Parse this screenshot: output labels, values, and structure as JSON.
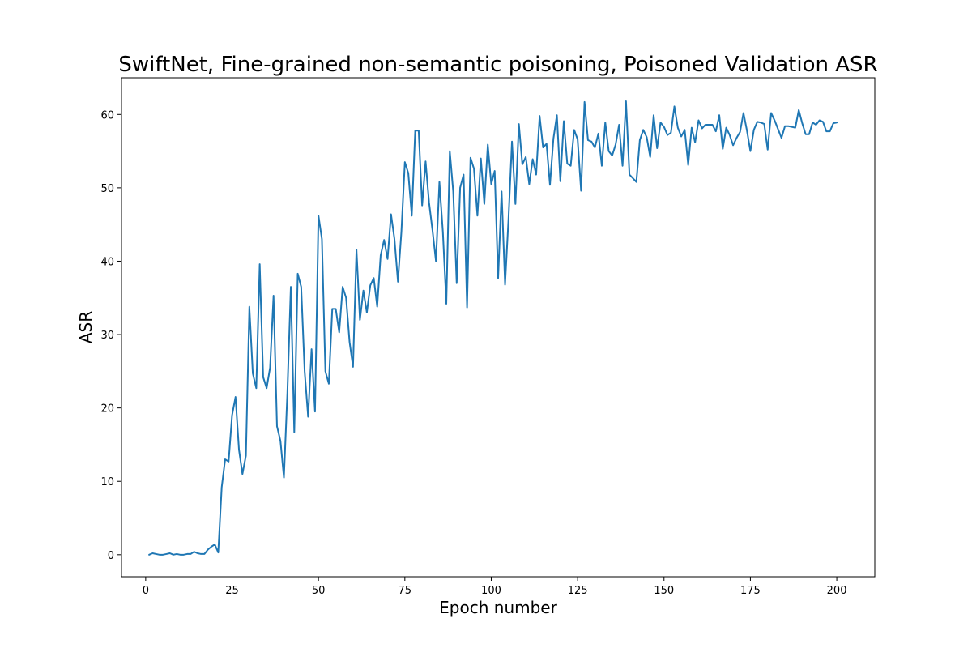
{
  "chart_data": {
    "type": "line",
    "title": "SwiftNet, Fine-grained non-semantic poisoning, Poisoned Validation ASR",
    "xlabel": "Epoch number",
    "ylabel": "ASR",
    "xlim": [
      -7,
      211
    ],
    "ylim": [
      -3,
      65
    ],
    "xticks": [
      0,
      25,
      50,
      75,
      100,
      125,
      150,
      175,
      200
    ],
    "yticks": [
      0,
      10,
      20,
      30,
      40,
      50,
      60
    ],
    "grid": false,
    "series": [
      {
        "color": "#1f77b4",
        "x": [
          1,
          2,
          3,
          4,
          5,
          6,
          7,
          8,
          9,
          10,
          11,
          12,
          13,
          14,
          15,
          16,
          17,
          18,
          19,
          20,
          21,
          22,
          23,
          24,
          25,
          26,
          27,
          28,
          29,
          30,
          31,
          32,
          33,
          34,
          35,
          36,
          37,
          38,
          39,
          40,
          41,
          42,
          43,
          44,
          45,
          46,
          47,
          48,
          49,
          50,
          51,
          52,
          53,
          54,
          55,
          56,
          57,
          58,
          59,
          60,
          61,
          62,
          63,
          64,
          65,
          66,
          67,
          68,
          69,
          70,
          71,
          72,
          73,
          74,
          75,
          76,
          77,
          78,
          79,
          80,
          81,
          82,
          83,
          84,
          85,
          86,
          87,
          88,
          89,
          90,
          91,
          92,
          93,
          94,
          95,
          96,
          97,
          98,
          99,
          100,
          101,
          102,
          103,
          104,
          105,
          106,
          107,
          108,
          109,
          110,
          111,
          112,
          113,
          114,
          115,
          116,
          117,
          118,
          119,
          120,
          121,
          122,
          123,
          124,
          125,
          126,
          127,
          128,
          129,
          130,
          131,
          132,
          133,
          134,
          135,
          136,
          137,
          138,
          139,
          140,
          141,
          142,
          143,
          144,
          145,
          146,
          147,
          148,
          149,
          150,
          151,
          152,
          153,
          154,
          155,
          156,
          157,
          158,
          159,
          160,
          161,
          162,
          163,
          164,
          165,
          166,
          167,
          168,
          169,
          170,
          171,
          172,
          173,
          174,
          175,
          176,
          177,
          178,
          179,
          180,
          181,
          182,
          183,
          184,
          185,
          186,
          187,
          188,
          189,
          190,
          191,
          192,
          193,
          194,
          195,
          196,
          197,
          198,
          199,
          200
        ],
        "values": [
          0.0,
          0.2,
          0.1,
          0.0,
          0.0,
          0.1,
          0.2,
          0.0,
          0.1,
          0.0,
          0.0,
          0.1,
          0.1,
          0.4,
          0.2,
          0.1,
          0.1,
          0.7,
          1.1,
          1.4,
          0.3,
          9.2,
          13.0,
          12.7,
          19.0,
          21.5,
          14.3,
          11.0,
          13.5,
          33.8,
          24.7,
          22.7,
          39.6,
          24.2,
          22.7,
          25.5,
          35.3,
          17.5,
          15.5,
          10.5,
          22.0,
          36.5,
          16.7,
          38.3,
          36.5,
          25.0,
          18.8,
          28.0,
          19.5,
          46.2,
          43.0,
          25.0,
          23.3,
          33.5,
          33.5,
          30.3,
          36.5,
          35.0,
          29.0,
          25.6,
          41.6,
          32.0,
          36.0,
          33.0,
          36.7,
          37.7,
          33.8,
          40.8,
          42.9,
          40.3,
          46.4,
          43.0,
          37.2,
          44.0,
          53.5,
          52.0,
          46.2,
          57.8,
          57.8,
          47.6,
          53.6,
          48.0,
          44.2,
          40.0,
          50.8,
          44.0,
          34.2,
          55.0,
          49.5,
          37.0,
          50.0,
          51.8,
          33.7,
          54.1,
          52.6,
          46.2,
          54.0,
          47.8,
          55.9,
          50.5,
          52.3,
          37.7,
          49.5,
          36.8,
          45.8,
          56.3,
          47.8,
          58.7,
          53.2,
          54.2,
          50.5,
          53.9,
          51.8,
          59.8,
          55.5,
          56.0,
          50.4,
          56.7,
          59.9,
          50.9,
          59.1,
          53.3,
          53.0,
          57.9,
          56.6,
          49.6,
          61.7,
          56.5,
          56.3,
          55.5,
          57.4,
          53.0,
          58.9,
          55.0,
          54.4,
          55.9,
          58.6,
          53.0,
          61.8,
          51.8,
          51.3,
          50.8,
          56.5,
          57.9,
          56.9,
          54.2,
          59.9,
          55.4,
          58.9,
          58.3,
          57.2,
          57.5,
          61.1,
          58.2,
          57.0,
          57.9,
          53.1,
          58.2,
          56.2,
          59.2,
          58.1,
          58.6,
          58.6,
          58.6,
          57.7,
          59.9,
          55.3,
          58.2,
          57.2,
          55.8,
          56.8,
          57.6,
          60.2,
          57.8,
          55.0,
          57.9,
          59.0,
          58.9,
          58.7,
          55.2,
          60.2,
          59.2,
          58.0,
          56.8,
          58.4,
          58.4,
          58.3,
          58.2,
          60.6,
          58.8,
          57.3,
          57.3,
          58.9,
          58.6,
          59.2,
          59.0,
          57.7,
          57.7,
          58.8,
          58.9
        ]
      }
    ]
  }
}
